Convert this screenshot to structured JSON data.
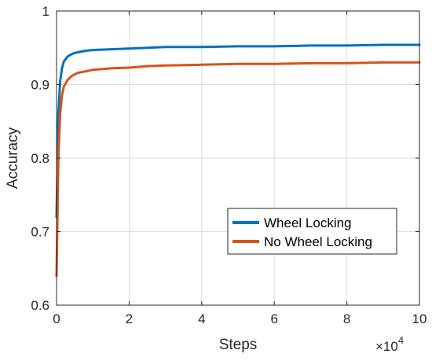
{
  "chart_data": {
    "type": "line",
    "xlabel": "Steps",
    "ylabel": "Accuracy",
    "x_exponent_label": "×10",
    "x_exponent_power": "4",
    "xlim": [
      0,
      100000
    ],
    "ylim": [
      0.6,
      1.0
    ],
    "x_ticks": [
      0,
      20000,
      40000,
      60000,
      80000,
      100000
    ],
    "x_tick_labels": [
      "0",
      "2",
      "4",
      "6",
      "8",
      "10"
    ],
    "y_ticks": [
      0.6,
      0.7,
      0.8,
      0.9,
      1.0
    ],
    "y_tick_labels": [
      "0.6",
      "0.7",
      "0.8",
      "0.9",
      "1"
    ],
    "grid": true,
    "legend_position": "lower-right",
    "series": [
      {
        "name": "Wheel Locking",
        "color": "#0072BD",
        "x": [
          0,
          500,
          1000,
          1500,
          2000,
          3000,
          4000,
          5000,
          6000,
          8000,
          10000,
          15000,
          20000,
          25000,
          30000,
          40000,
          50000,
          60000,
          70000,
          80000,
          90000,
          100000
        ],
        "y": [
          0.72,
          0.86,
          0.905,
          0.922,
          0.931,
          0.938,
          0.941,
          0.943,
          0.944,
          0.946,
          0.947,
          0.948,
          0.949,
          0.95,
          0.951,
          0.951,
          0.952,
          0.952,
          0.953,
          0.953,
          0.954,
          0.954
        ]
      },
      {
        "name": "No Wheel Locking",
        "color": "#D95319",
        "x": [
          0,
          500,
          1000,
          1500,
          2000,
          3000,
          4000,
          5000,
          6000,
          8000,
          10000,
          15000,
          20000,
          25000,
          30000,
          40000,
          50000,
          60000,
          70000,
          80000,
          90000,
          100000
        ],
        "y": [
          0.64,
          0.8,
          0.86,
          0.885,
          0.897,
          0.906,
          0.911,
          0.914,
          0.916,
          0.918,
          0.92,
          0.922,
          0.923,
          0.925,
          0.926,
          0.927,
          0.928,
          0.928,
          0.929,
          0.929,
          0.93,
          0.93
        ]
      }
    ]
  }
}
